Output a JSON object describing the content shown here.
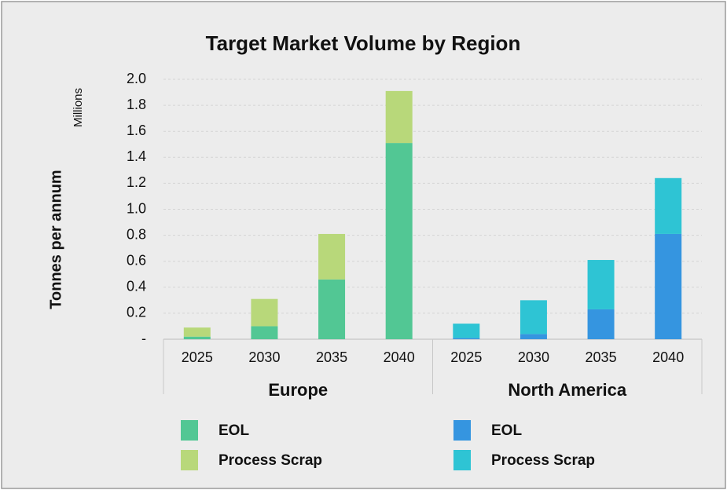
{
  "chart_data": {
    "type": "bar",
    "stacked": true,
    "title": "Target Market Volume by Region",
    "y_label": "Tonnes per annum",
    "y_unit": "Millions",
    "ylim": [
      0,
      2
    ],
    "yticks": [
      {
        "value": 0,
        "label": "-"
      },
      0.2,
      0.4,
      0.6,
      0.8,
      {
        "value": 1,
        "label": "1.0"
      },
      1.2,
      1.4,
      1.6,
      1.8,
      {
        "value": 2,
        "label": "2.0"
      }
    ],
    "grid": true,
    "groups": [
      {
        "name": "Europe",
        "categories": [
          "2025",
          "2030",
          "2035",
          "2040"
        ],
        "series": [
          {
            "name": "EOL",
            "color": "#52c794",
            "values": [
              0.02,
              0.1,
              0.46,
              1.51
            ]
          },
          {
            "name": "Process Scrap",
            "color": "#b8d87a",
            "values": [
              0.07,
              0.21,
              0.35,
              0.4
            ]
          }
        ]
      },
      {
        "name": "North America",
        "categories": [
          "2025",
          "2030",
          "2035",
          "2040"
        ],
        "series": [
          {
            "name": "EOL",
            "color": "#3595e0",
            "values": [
              0.01,
              0.04,
              0.23,
              0.81
            ]
          },
          {
            "name": "Process Scrap",
            "color": "#2ec4d4",
            "values": [
              0.11,
              0.26,
              0.38,
              0.43
            ]
          }
        ]
      }
    ]
  }
}
